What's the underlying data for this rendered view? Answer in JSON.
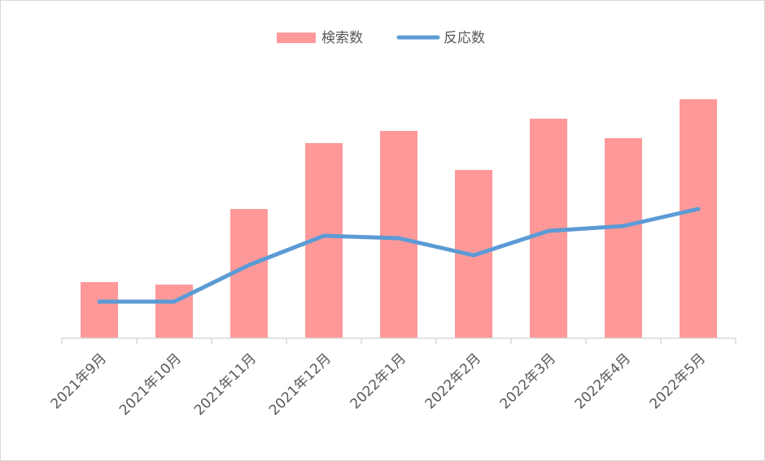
{
  "chart_data": {
    "type": "bar-line",
    "categories": [
      "2021年9月",
      "2021年10月",
      "2021年11月",
      "2021年12月",
      "2022年1月",
      "2022年2月",
      "2022年3月",
      "2022年4月",
      "2022年5月"
    ],
    "series": [
      {
        "name": "検索数",
        "type": "bar",
        "color": "#ff9999",
        "values": [
          23,
          22,
          53,
          80,
          85,
          69,
          90,
          82,
          98
        ]
      },
      {
        "name": "反応数",
        "type": "line",
        "color": "#5b9bd5",
        "values": [
          15,
          15,
          30,
          42,
          41,
          34,
          44,
          46,
          53
        ]
      }
    ],
    "ylim": [
      0,
      100
    ],
    "legend": "top"
  }
}
